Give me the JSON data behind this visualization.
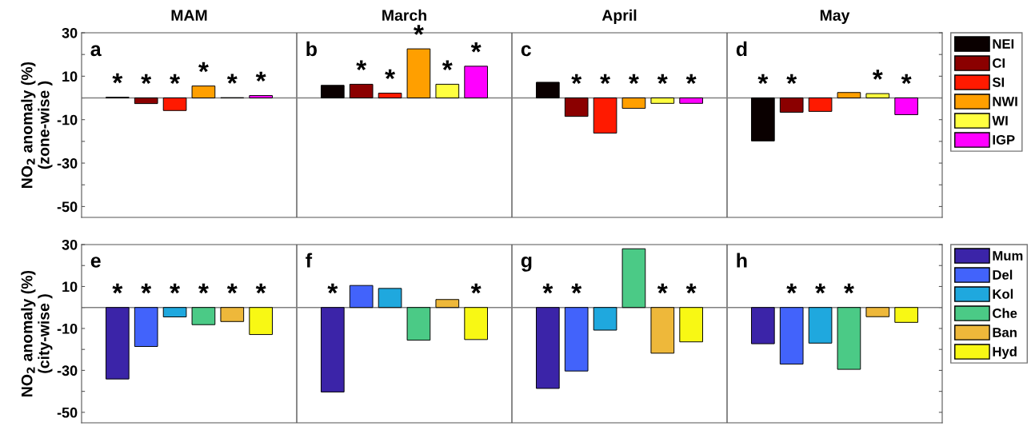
{
  "chart_data": [
    {
      "type": "bar",
      "ylabel": "NO$_{2}$ anomaly (%)\n(zone-wise )",
      "categories": [
        "MAM",
        "March",
        "April",
        "May"
      ],
      "ylim": [
        -55,
        30
      ],
      "yticks": [
        30,
        {
          "value": 20,
          "label": null
        },
        10,
        {
          "value": 0,
          "label": null
        },
        -10,
        {
          "value": -20,
          "label": null
        },
        -30,
        {
          "value": -40,
          "label": null
        },
        -50
      ],
      "annotations": [
        "a",
        "b",
        "c",
        "d"
      ],
      "legend": "right",
      "ref_lines": [
        {
          "axis": "y",
          "value": 0,
          "color": "#808080"
        }
      ],
      "series": [
        {
          "name": "NEI",
          "color": "#0a0000",
          "values": [
            0.3,
            5.8,
            7.2,
            -19.8
          ],
          "value_labels": [
            "*",
            null,
            null,
            "*"
          ]
        },
        {
          "name": "CI",
          "color": "#8b0000",
          "values": [
            -2.6,
            6.3,
            -8.5,
            -6.6
          ],
          "value_labels": [
            "*",
            "*",
            "*",
            "*"
          ]
        },
        {
          "name": "SI",
          "color": "#ff1a00",
          "values": [
            -5.8,
            2.2,
            -16.2,
            -6.2
          ],
          "value_labels": [
            "*",
            "*",
            "*",
            null
          ]
        },
        {
          "name": "NWI",
          "color": "#ff9f00",
          "values": [
            5.5,
            22.6,
            -4.8,
            2.5
          ],
          "value_labels": [
            "*",
            "*",
            "*",
            null
          ]
        },
        {
          "name": "WI",
          "color": "#ffff40",
          "values": [
            0.1,
            6.3,
            -2.5,
            2.0
          ],
          "value_labels": [
            "*",
            "*",
            "*",
            "*"
          ]
        },
        {
          "name": "IGP",
          "color": "#ff00ff",
          "values": [
            1.1,
            14.6,
            -2.5,
            -7.7
          ],
          "value_labels": [
            "*",
            "*",
            "*",
            "*"
          ]
        }
      ]
    },
    {
      "type": "bar",
      "ylabel": "NO$_{2}$ anomaly (%)\n(city-wise )",
      "categories": [
        null,
        null,
        null,
        null
      ],
      "ylim": [
        -55,
        30
      ],
      "yticks": [
        30,
        {
          "value": 20,
          "label": null
        },
        10,
        {
          "value": 0,
          "label": null
        },
        -10,
        {
          "value": -20,
          "label": null
        },
        -30,
        {
          "value": -40,
          "label": null
        },
        -50
      ],
      "annotations": [
        "e",
        "f",
        "g",
        "h"
      ],
      "legend": "right",
      "ref_lines": [
        {
          "axis": "y",
          "value": 0,
          "color": "#808080"
        }
      ],
      "series": [
        {
          "name": "Mum",
          "color": "#3b24a8",
          "values": [
            -34.1,
            -40.3,
            -38.6,
            -17.3
          ],
          "value_labels": [
            "*",
            "*",
            "*",
            null
          ]
        },
        {
          "name": "Del",
          "color": "#4263fb",
          "values": [
            -18.6,
            10.5,
            -30.3,
            -27.0
          ],
          "value_labels": [
            "*",
            null,
            "*",
            "*"
          ]
        },
        {
          "name": "Kol",
          "color": "#1fa8de",
          "values": [
            -4.5,
            9.1,
            -10.8,
            -17.0
          ],
          "value_labels": [
            "*",
            null,
            null,
            "*"
          ]
        },
        {
          "name": "Che",
          "color": "#4bca86",
          "values": [
            -8.2,
            -15.6,
            28.0,
            -29.5
          ],
          "value_labels": [
            "*",
            null,
            null,
            "*"
          ]
        },
        {
          "name": "Ban",
          "color": "#eeb83a",
          "values": [
            -6.7,
            3.8,
            -21.8,
            -4.4
          ],
          "value_labels": [
            "*",
            null,
            "*",
            null
          ]
        },
        {
          "name": "Hyd",
          "color": "#f8f814",
          "values": [
            -12.9,
            -15.3,
            -16.4,
            -7.1
          ],
          "value_labels": [
            "*",
            "*",
            "*",
            null
          ]
        }
      ]
    }
  ]
}
